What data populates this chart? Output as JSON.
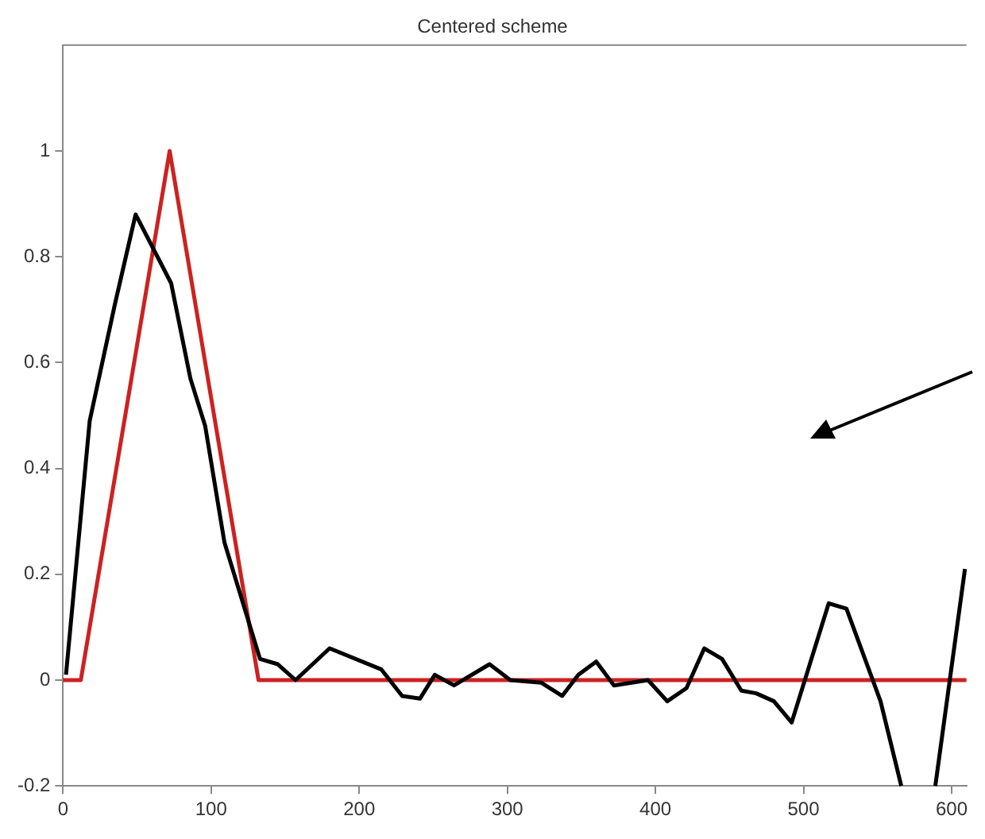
{
  "chart_data": {
    "type": "line",
    "title": "Centered scheme",
    "series": [
      {
        "color": "#000000",
        "x": [
          2,
          18,
          35,
          49,
          73,
          86,
          96,
          109,
          133,
          145,
          157,
          180,
          215,
          229,
          241,
          251,
          264,
          288,
          302,
          323,
          337,
          348,
          360,
          372,
          395,
          408,
          421,
          433,
          445,
          458,
          468,
          480,
          492,
          517,
          529,
          552,
          566,
          578,
          589,
          609
        ],
        "values": [
          0.01,
          0.49,
          0.71,
          0.88,
          0.75,
          0.57,
          0.48,
          0.26,
          0.04,
          0.03,
          0,
          0.06,
          0.02,
          -0.03,
          -0.035,
          0.01,
          -0.01,
          0.03,
          0,
          -0.005,
          -0.03,
          0.01,
          0.035,
          -0.01,
          0,
          -0.04,
          -0.015,
          0.06,
          0.04,
          -0.02,
          -0.025,
          -0.04,
          -0.08,
          0.145,
          0.135,
          -0.04,
          -0.2,
          null,
          -0.2,
          0.21
        ]
      },
      {
        "color": "#cc2222",
        "x": [
          0,
          12,
          72,
          132,
          610
        ],
        "values": [
          0,
          0,
          1,
          0,
          0
        ]
      }
    ],
    "xlim": [
      0,
      610
    ],
    "xticks": [
      0,
      100,
      200,
      300,
      400,
      500,
      600
    ],
    "ylim": [
      -0.2,
      1.2
    ],
    "yticks": [
      -0.2,
      0,
      0.2,
      0.4,
      0.6,
      0.8,
      1
    ],
    "grid": false,
    "legend": false,
    "marker": "none",
    "line_style": "solid"
  }
}
